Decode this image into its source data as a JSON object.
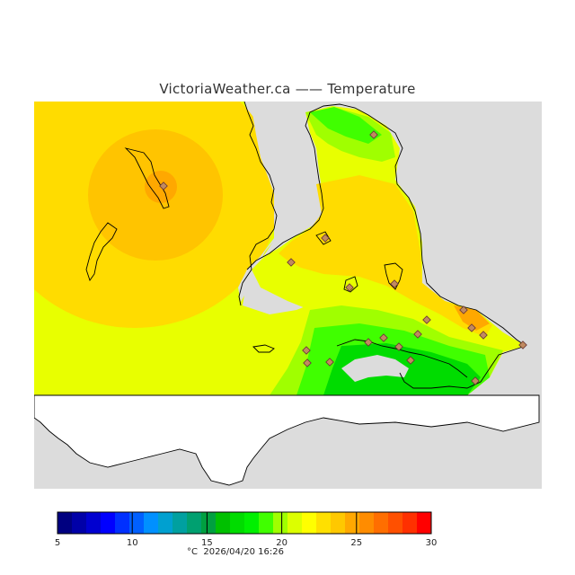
{
  "title": "VictoriaWeather.ca —— Temperature",
  "legend": {
    "unit": "°C",
    "timestamp": "2026/04/20 16:26",
    "min": 5,
    "max": 30,
    "tick_labels": [
      "5",
      "10",
      "15",
      "20",
      "25",
      "30"
    ],
    "colors": [
      "#000080",
      "#0000a8",
      "#0000d0",
      "#0000ff",
      "#0030ff",
      "#0060ff",
      "#0090ff",
      "#00a0d0",
      "#00a0a0",
      "#00a070",
      "#00a040",
      "#00c000",
      "#00dc00",
      "#00f000",
      "#40ff00",
      "#a0ff00",
      "#dcff00",
      "#ffff00",
      "#ffe000",
      "#ffc800",
      "#ffa800",
      "#ff8c00",
      "#ff6e00",
      "#ff5000",
      "#ff3000",
      "#ff0000"
    ]
  },
  "colors": {
    "water": "#dcdcdc",
    "outside": "#ffffff",
    "marker": "#aa6666"
  }
}
